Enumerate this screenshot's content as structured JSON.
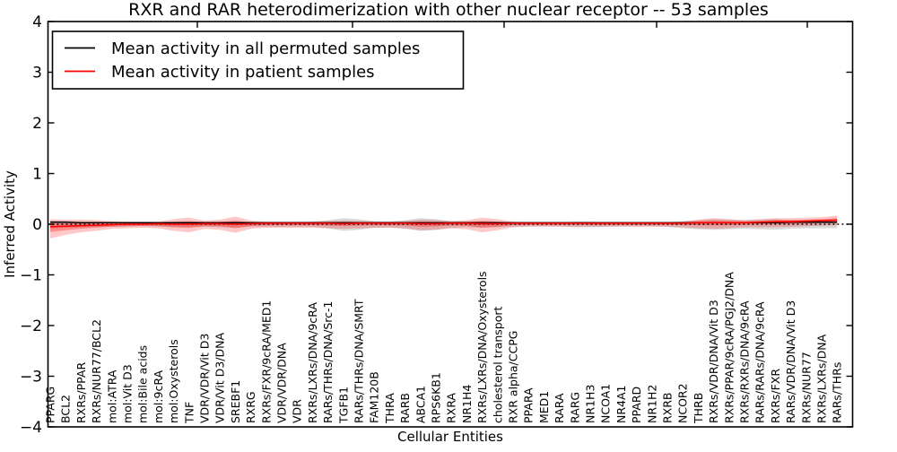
{
  "chart_data": {
    "type": "line",
    "title": "RXR and RAR heterodimerization with other nuclear receptor -- 53 samples",
    "xlabel": "Cellular Entities",
    "ylabel": "Inferred Activity",
    "ylim": [
      -4,
      4
    ],
    "yticks": [
      4,
      3,
      2,
      1,
      0,
      -1,
      -2,
      -3,
      -4
    ],
    "ytick_labels": [
      "4",
      "3",
      "2",
      "1",
      "0",
      "−1",
      "−2",
      "−3",
      "−4"
    ],
    "grid": false,
    "legend_position": "upper left",
    "zero_line": {
      "value": 0,
      "style": "dotted",
      "color": "#000000"
    },
    "categories": [
      "PPARG",
      "BCL2",
      "RXRs/PPAR",
      "RXRs/NUR77/BCL2",
      "mol:ATRA",
      "mol:Vit D3",
      "mol:Bile acids",
      "mol:9cRA",
      "mol:Oxysterols",
      "TNF",
      "VDR/VDR/Vit D3",
      "VDR/Vit D3/DNA",
      "SREBF1",
      "RXRG",
      "RXRs/FXR/9cRA/MED1",
      "VDR/VDR/DNA",
      "VDR",
      "RXRs/LXRs/DNA/9cRA",
      "RARs/THRs/DNA/Src-1",
      "TGFB1",
      "RARs/THRs/DNA/SMRT",
      "FAM120B",
      "THRA",
      "RARB",
      "ABCA1",
      "RPS6KB1",
      "RXRA",
      "NR1H4",
      "RXRs/LXRs/DNA/Oxysterols",
      "cholesterol transport",
      "RXR alpha/CCPG",
      "PPARA",
      "MED1",
      "RARA",
      "RARG",
      "NR1H3",
      "NCOA1",
      "NR4A1",
      "PPARD",
      "NR1H2",
      "RXRB",
      "NCOR2",
      "THRB",
      "RXRs/VDR/DNA/Vit D3",
      "RXRs/PPAR/9cRA/PGJ2/DNA",
      "RXRs/RXRs/DNA/9cRA",
      "RARs/RARs/DNA/9cRA",
      "RXRs/FXR",
      "RARs/VDR/DNA/Vit D3",
      "RXRs/NUR77",
      "RXRs/LXRs/DNA",
      "RARs/THRs"
    ],
    "series": [
      {
        "name": "Mean activity in all permuted samples",
        "color": "#000000",
        "values": [
          0.04,
          0.04,
          0.03,
          0.03,
          0.03,
          0.03,
          0.03,
          0.03,
          0.03,
          0.03,
          0.03,
          0.03,
          0.03,
          0.03,
          0.03,
          0.03,
          0.03,
          0.03,
          0.03,
          0.03,
          0.03,
          0.03,
          0.03,
          0.03,
          0.03,
          0.03,
          0.03,
          0.03,
          0.03,
          0.03,
          0.03,
          0.03,
          0.03,
          0.03,
          0.03,
          0.03,
          0.03,
          0.03,
          0.03,
          0.03,
          0.03,
          0.03,
          0.03,
          0.03,
          0.03,
          0.03,
          0.03,
          0.03,
          0.04,
          0.04,
          0.04,
          0.04
        ]
      },
      {
        "name": "Mean activity in patient samples",
        "color": "#ff0000",
        "values": [
          -0.05,
          -0.04,
          -0.03,
          -0.02,
          -0.01,
          0.0,
          0.0,
          0.01,
          0.0,
          0.0,
          0.01,
          0.01,
          0.0,
          0.01,
          0.02,
          0.02,
          0.02,
          0.02,
          0.02,
          0.01,
          0.02,
          0.02,
          0.02,
          0.02,
          0.01,
          0.01,
          0.02,
          0.02,
          0.01,
          0.01,
          0.02,
          0.02,
          0.02,
          0.02,
          0.02,
          0.02,
          0.02,
          0.02,
          0.02,
          0.02,
          0.02,
          0.02,
          0.03,
          0.03,
          0.03,
          0.03,
          0.04,
          0.05,
          0.05,
          0.06,
          0.07,
          0.08
        ]
      }
    ],
    "bands": [
      {
        "name": "permuted samples range",
        "color": "#8a8a8a",
        "opacity": 0.32,
        "upper": [
          0.07,
          0.06,
          0.05,
          0.05,
          0.05,
          0.04,
          0.04,
          0.04,
          0.05,
          0.06,
          0.05,
          0.05,
          0.06,
          0.05,
          0.04,
          0.04,
          0.04,
          0.05,
          0.08,
          0.12,
          0.1,
          0.06,
          0.05,
          0.08,
          0.12,
          0.1,
          0.06,
          0.05,
          0.06,
          0.05,
          0.04,
          0.04,
          0.04,
          0.04,
          0.05,
          0.05,
          0.04,
          0.04,
          0.04,
          0.04,
          0.04,
          0.06,
          0.08,
          0.1,
          0.09,
          0.08,
          0.09,
          0.1,
          0.08,
          0.07,
          0.07,
          0.07
        ],
        "lower": [
          -0.08,
          -0.07,
          -0.06,
          -0.05,
          -0.05,
          -0.05,
          -0.04,
          -0.05,
          -0.06,
          -0.06,
          -0.05,
          -0.06,
          -0.07,
          -0.05,
          -0.05,
          -0.05,
          -0.05,
          -0.05,
          -0.08,
          -0.13,
          -0.11,
          -0.07,
          -0.06,
          -0.09,
          -0.13,
          -0.11,
          -0.07,
          -0.06,
          -0.07,
          -0.06,
          -0.05,
          -0.04,
          -0.04,
          -0.04,
          -0.06,
          -0.06,
          -0.05,
          -0.04,
          -0.04,
          -0.04,
          -0.05,
          -0.08,
          -0.1,
          -0.11,
          -0.1,
          -0.09,
          -0.1,
          -0.11,
          -0.09,
          -0.08,
          -0.08,
          -0.08
        ]
      },
      {
        "name": "patient samples range",
        "color": "#ff0000",
        "opacity": 0.22,
        "upper": [
          0.1,
          0.09,
          0.09,
          0.08,
          0.06,
          0.05,
          0.05,
          0.05,
          0.1,
          0.13,
          0.07,
          0.09,
          0.15,
          0.07,
          0.05,
          0.05,
          0.05,
          0.05,
          0.06,
          0.07,
          0.06,
          0.05,
          0.05,
          0.06,
          0.09,
          0.08,
          0.06,
          0.08,
          0.13,
          0.1,
          0.05,
          0.04,
          0.04,
          0.04,
          0.04,
          0.04,
          0.04,
          0.04,
          0.04,
          0.04,
          0.04,
          0.05,
          0.09,
          0.12,
          0.1,
          0.08,
          0.1,
          0.12,
          0.12,
          0.13,
          0.14,
          0.17
        ],
        "lower": [
          -0.28,
          -0.21,
          -0.16,
          -0.13,
          -0.09,
          -0.08,
          -0.07,
          -0.08,
          -0.13,
          -0.16,
          -0.09,
          -0.11,
          -0.17,
          -0.09,
          -0.07,
          -0.07,
          -0.07,
          -0.07,
          -0.08,
          -0.09,
          -0.08,
          -0.07,
          -0.07,
          -0.08,
          -0.12,
          -0.11,
          -0.08,
          -0.1,
          -0.16,
          -0.12,
          -0.06,
          -0.05,
          -0.05,
          -0.05,
          -0.05,
          -0.05,
          -0.05,
          -0.05,
          -0.05,
          -0.05,
          -0.05,
          -0.06,
          -0.08,
          -0.09,
          -0.08,
          -0.06,
          -0.06,
          -0.06,
          -0.05,
          -0.04,
          -0.03,
          -0.02
        ]
      }
    ]
  }
}
